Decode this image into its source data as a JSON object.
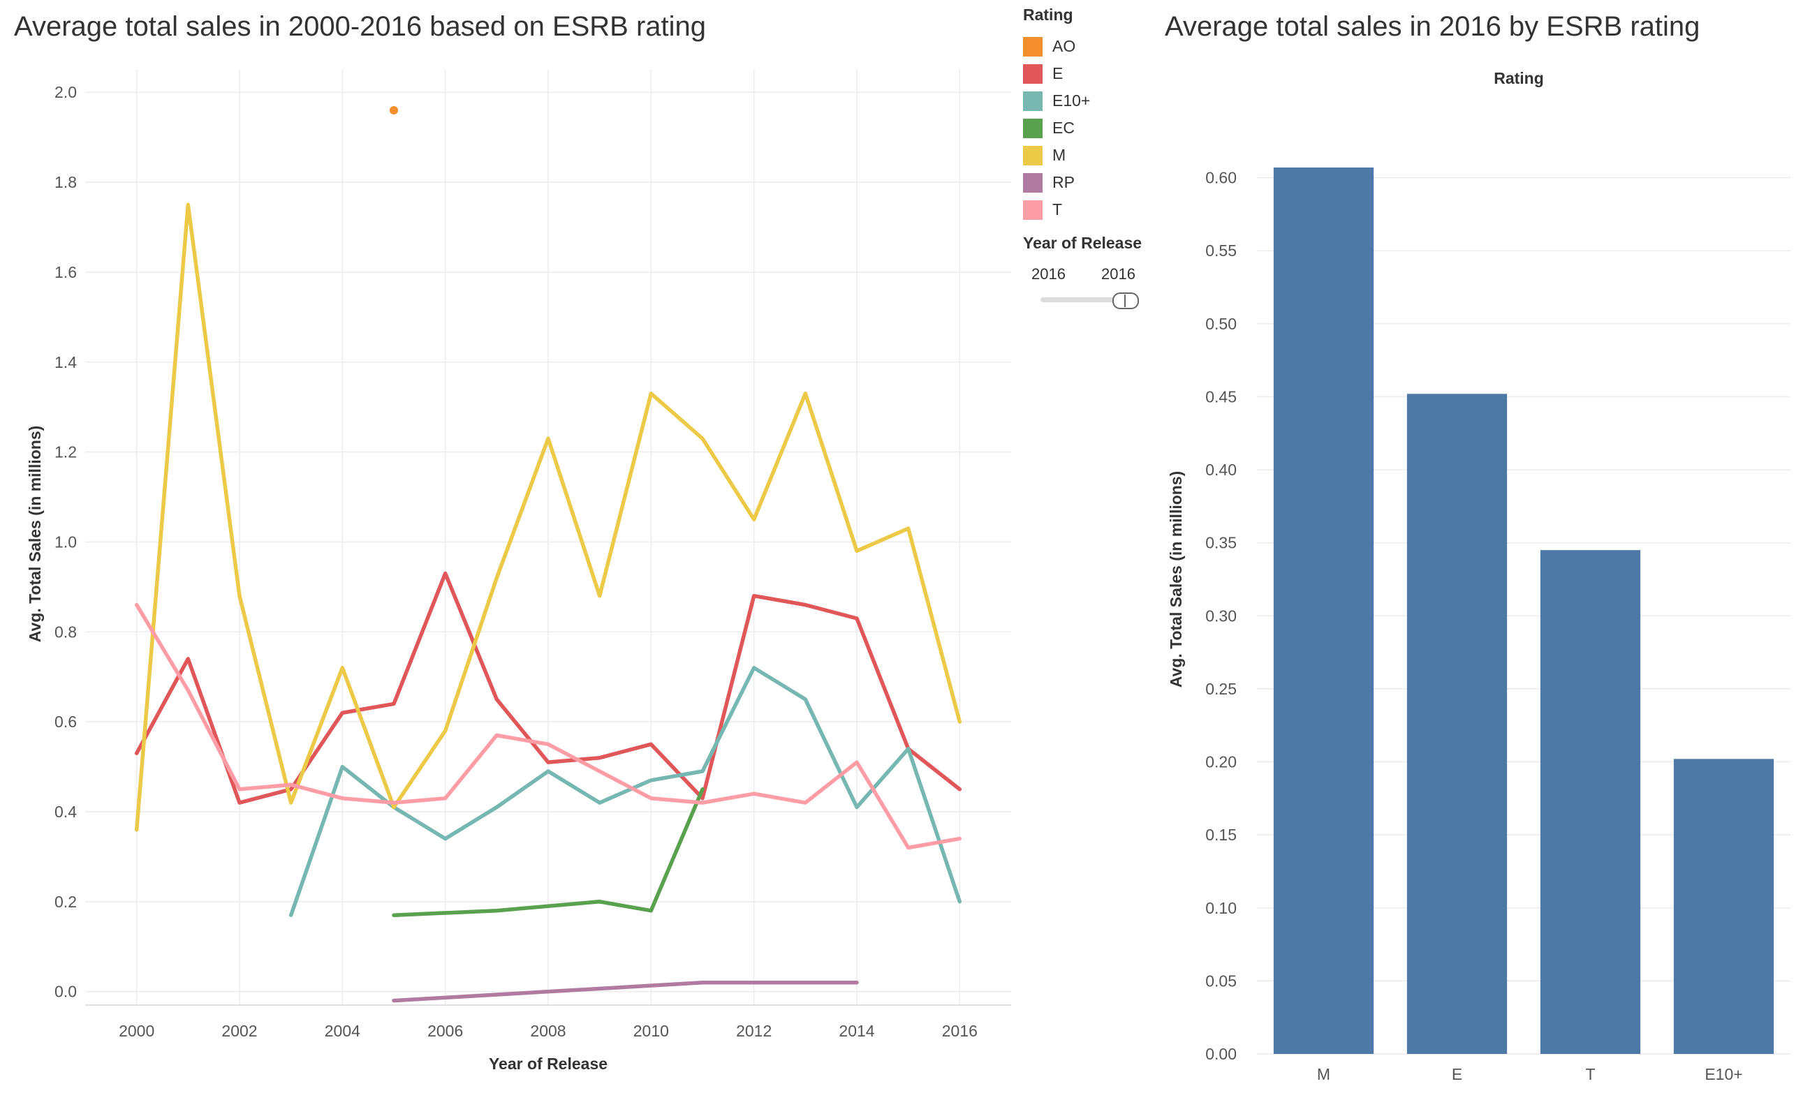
{
  "left_chart": {
    "title": "Average total sales in 2000-2016 based on ESRB rating",
    "xlabel": "Year of Release",
    "ylabel": "Avg. Total Sales (in millions)"
  },
  "right_chart": {
    "title": "Average total sales in 2016 by ESRB rating",
    "column_header": "Rating",
    "ylabel": "Avg. Total Sales (in millions)"
  },
  "legend": {
    "title": "Rating",
    "items": [
      {
        "label": "AO",
        "color": "#f28e2b"
      },
      {
        "label": "E",
        "color": "#e15759"
      },
      {
        "label": "E10+",
        "color": "#76b7b2"
      },
      {
        "label": "EC",
        "color": "#59a14f"
      },
      {
        "label": "M",
        "color": "#edc948"
      },
      {
        "label": "RP",
        "color": "#b07aa1"
      },
      {
        "label": "T",
        "color": "#ff9da7"
      }
    ]
  },
  "filter": {
    "title": "Year of Release",
    "min_value": "2016",
    "max_value": "2016"
  },
  "chart_data": [
    {
      "type": "line",
      "title": "Average total sales in 2000-2016 based on ESRB rating",
      "xlabel": "Year of Release",
      "ylabel": "Avg. Total Sales (in millions)",
      "xlim": [
        1999,
        2017
      ],
      "ylim": [
        -0.03,
        2.05
      ],
      "xticks": [
        "2000",
        "2002",
        "2004",
        "2006",
        "2008",
        "2010",
        "2012",
        "2014",
        "2016"
      ],
      "yticks": [
        "0.0",
        "0.2",
        "0.4",
        "0.6",
        "0.8",
        "1.0",
        "1.2",
        "1.4",
        "1.6",
        "1.8",
        "2.0"
      ],
      "grid": true,
      "series": [
        {
          "name": "AO",
          "color": "#f28e2b",
          "points": [
            [
              2005,
              1.96
            ]
          ]
        },
        {
          "name": "E",
          "color": "#e15759",
          "points": [
            [
              2000,
              0.53
            ],
            [
              2001,
              0.74
            ],
            [
              2002,
              0.42
            ],
            [
              2003,
              0.45
            ],
            [
              2004,
              0.62
            ],
            [
              2005,
              0.64
            ],
            [
              2006,
              0.93
            ],
            [
              2007,
              0.65
            ],
            [
              2008,
              0.51
            ],
            [
              2009,
              0.52
            ],
            [
              2010,
              0.55
            ],
            [
              2011,
              0.43
            ],
            [
              2012,
              0.88
            ],
            [
              2013,
              0.86
            ],
            [
              2014,
              0.83
            ],
            [
              2015,
              0.54
            ],
            [
              2016,
              0.45
            ]
          ]
        },
        {
          "name": "E10+",
          "color": "#76b7b2",
          "points": [
            [
              2003,
              0.17
            ],
            [
              2004,
              0.5
            ],
            [
              2005,
              0.41
            ],
            [
              2006,
              0.34
            ],
            [
              2007,
              0.41
            ],
            [
              2008,
              0.49
            ],
            [
              2009,
              0.42
            ],
            [
              2010,
              0.47
            ],
            [
              2011,
              0.49
            ],
            [
              2012,
              0.72
            ],
            [
              2013,
              0.65
            ],
            [
              2014,
              0.41
            ],
            [
              2015,
              0.54
            ],
            [
              2016,
              0.2
            ]
          ]
        },
        {
          "name": "EC",
          "color": "#59a14f",
          "points": [
            [
              2005,
              0.17
            ],
            [
              2007,
              0.18
            ],
            [
              2009,
              0.2
            ],
            [
              2010,
              0.18
            ],
            [
              2011,
              0.45
            ]
          ]
        },
        {
          "name": "M",
          "color": "#edc948",
          "points": [
            [
              2000,
              0.36
            ],
            [
              2001,
              1.75
            ],
            [
              2002,
              0.88
            ],
            [
              2003,
              0.42
            ],
            [
              2004,
              0.72
            ],
            [
              2005,
              0.41
            ],
            [
              2006,
              0.58
            ],
            [
              2007,
              0.92
            ],
            [
              2008,
              1.23
            ],
            [
              2009,
              0.88
            ],
            [
              2010,
              1.33
            ],
            [
              2011,
              1.23
            ],
            [
              2012,
              1.05
            ],
            [
              2013,
              1.33
            ],
            [
              2014,
              0.98
            ],
            [
              2015,
              1.03
            ],
            [
              2016,
              0.6
            ]
          ]
        },
        {
          "name": "RP",
          "color": "#b07aa1",
          "points": [
            [
              2005,
              -0.02
            ],
            [
              2011,
              0.02
            ],
            [
              2014,
              0.02
            ]
          ]
        },
        {
          "name": "T",
          "color": "#ff9da7",
          "points": [
            [
              2000,
              0.86
            ],
            [
              2001,
              0.67
            ],
            [
              2002,
              0.45
            ],
            [
              2003,
              0.46
            ],
            [
              2004,
              0.43
            ],
            [
              2005,
              0.42
            ],
            [
              2006,
              0.43
            ],
            [
              2007,
              0.57
            ],
            [
              2008,
              0.55
            ],
            [
              2009,
              0.49
            ],
            [
              2010,
              0.43
            ],
            [
              2011,
              0.42
            ],
            [
              2012,
              0.44
            ],
            [
              2013,
              0.42
            ],
            [
              2014,
              0.51
            ],
            [
              2015,
              0.32
            ],
            [
              2016,
              0.34
            ]
          ]
        }
      ]
    },
    {
      "type": "bar",
      "title": "Average total sales in 2016 by ESRB rating",
      "column_header": "Rating",
      "ylabel": "Avg. Total Sales (in millions)",
      "categories": [
        "M",
        "E",
        "T",
        "E10+"
      ],
      "values": [
        0.607,
        0.452,
        0.345,
        0.202
      ],
      "ylim": [
        0,
        0.65
      ],
      "yticks": [
        "0.00",
        "0.05",
        "0.10",
        "0.15",
        "0.20",
        "0.25",
        "0.30",
        "0.35",
        "0.40",
        "0.45",
        "0.50",
        "0.55",
        "0.60"
      ],
      "bar_color": "#4e79a7",
      "grid": true
    }
  ]
}
